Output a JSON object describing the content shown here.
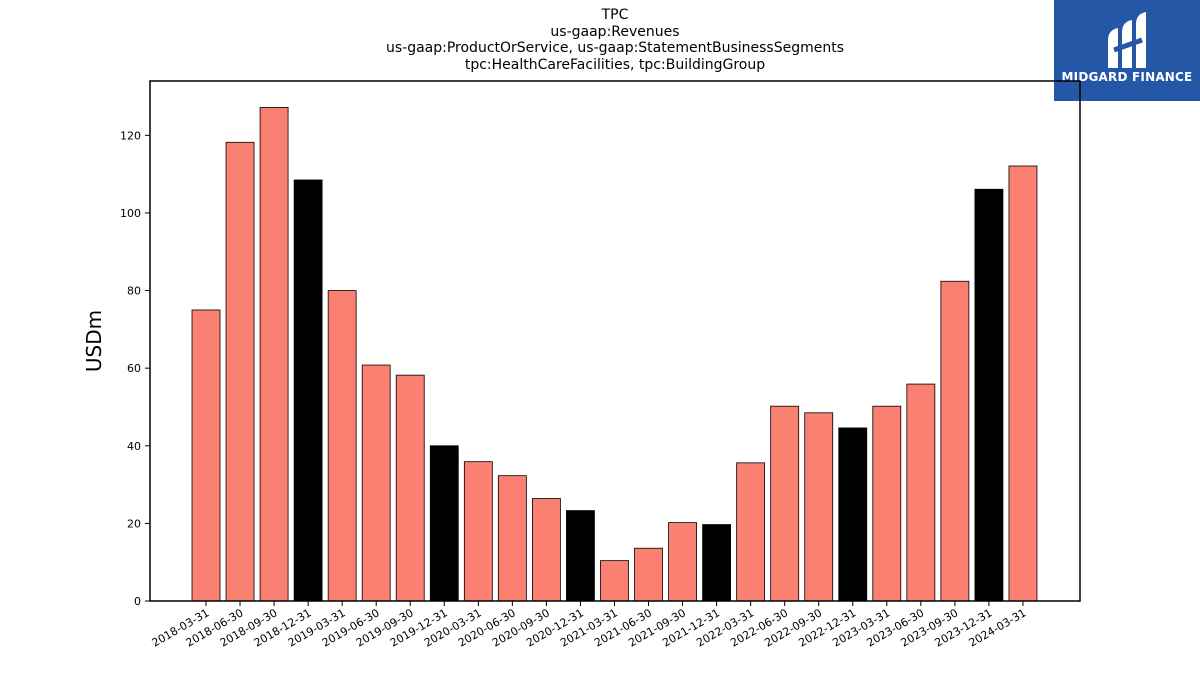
{
  "chart_data": {
    "type": "bar",
    "title_lines": [
      "TPC",
      "us-gaap:Revenues",
      "us-gaap:ProductOrService, us-gaap:StatementBusinessSegments",
      "tpc:HealthCareFacilities, tpc:BuildingGroup"
    ],
    "xlabel": "",
    "ylabel": "USDm",
    "ylim": [
      0,
      134
    ],
    "yticks": [
      0,
      20,
      40,
      60,
      80,
      100,
      120
    ],
    "grid": false,
    "categories": [
      "2018-03-31",
      "2018-06-30",
      "2018-09-30",
      "2018-12-31",
      "2019-03-31",
      "2019-06-30",
      "2019-09-30",
      "2019-12-31",
      "2020-03-31",
      "2020-06-30",
      "2020-09-30",
      "2020-12-31",
      "2021-03-31",
      "2021-06-30",
      "2021-09-30",
      "2021-12-31",
      "2022-03-31",
      "2022-06-30",
      "2022-09-30",
      "2022-12-31",
      "2023-03-31",
      "2023-06-30",
      "2023-09-30",
      "2023-12-31",
      "2024-03-31"
    ],
    "values": [
      75.0,
      118.2,
      127.2,
      108.5,
      80.0,
      60.8,
      58.2,
      40.0,
      35.9,
      32.3,
      26.4,
      23.3,
      10.4,
      13.6,
      20.2,
      19.7,
      35.6,
      50.2,
      48.5,
      44.6,
      50.2,
      55.9,
      82.4,
      106.1,
      112.1
    ],
    "bar_colors": [
      "#fa8072",
      "#fa8072",
      "#fa8072",
      "#000000",
      "#fa8072",
      "#fa8072",
      "#fa8072",
      "#000000",
      "#fa8072",
      "#fa8072",
      "#fa8072",
      "#000000",
      "#fa8072",
      "#fa8072",
      "#fa8072",
      "#000000",
      "#fa8072",
      "#fa8072",
      "#fa8072",
      "#000000",
      "#fa8072",
      "#fa8072",
      "#fa8072",
      "#000000",
      "#fa8072"
    ],
    "colors": {
      "quarter": "#fa8072",
      "year_end": "#000000",
      "edge": "#000000"
    }
  },
  "logo": {
    "text": "MIDGARD FINANCE",
    "background": "#2557a7"
  }
}
